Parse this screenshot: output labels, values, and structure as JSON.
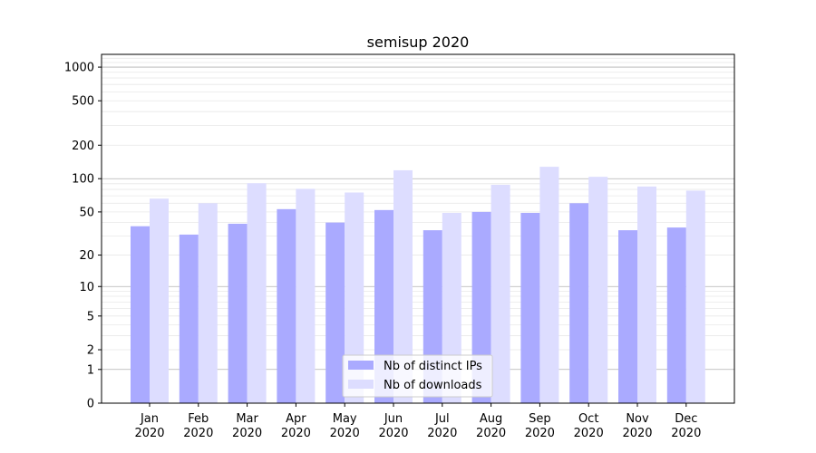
{
  "chart_data": {
    "type": "bar",
    "title": "semisup 2020",
    "xlabel": "",
    "ylabel": "",
    "categories": [
      "Jan\n2020",
      "Feb\n2020",
      "Mar\n2020",
      "Apr\n2020",
      "May\n2020",
      "Jun\n2020",
      "Jul\n2020",
      "Aug\n2020",
      "Sep\n2020",
      "Oct\n2020",
      "Nov\n2020",
      "Dec\n2020"
    ],
    "yscale": "symlog",
    "ylim": [
      0,
      1300
    ],
    "yticks": [
      0,
      1,
      2,
      5,
      10,
      20,
      50,
      100,
      200,
      500,
      1000
    ],
    "grid": true,
    "legend_position": "lower-center",
    "series": [
      {
        "name": "Nb of distinct IPs",
        "color": "#aaaaff",
        "values": [
          37,
          31,
          39,
          53,
          40,
          52,
          34,
          50,
          49,
          60,
          34,
          36
        ]
      },
      {
        "name": "Nb of downloads",
        "color": "#ddddff",
        "values": [
          66,
          60,
          91,
          81,
          75,
          119,
          49,
          88,
          128,
          104,
          85,
          78
        ]
      }
    ]
  }
}
